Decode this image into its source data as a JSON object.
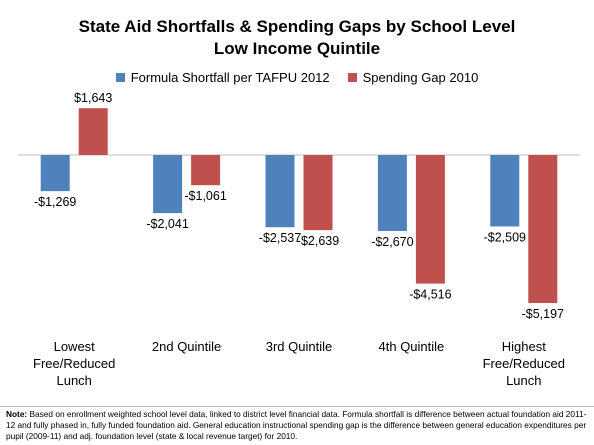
{
  "chart_data": {
    "type": "bar",
    "title": "State Aid Shortfalls & Spending Gaps by School Level Low Income Quintile",
    "xlabel": "",
    "ylabel": "",
    "categories": [
      "Lowest Free/Reduced Lunch",
      "2nd Quintile",
      "3rd Quintile",
      "4th Quintile",
      "Highest Free/Reduced Lunch"
    ],
    "category_lines": [
      [
        "Lowest",
        "Free/Reduced",
        "Lunch"
      ],
      [
        "2nd Quintile"
      ],
      [
        "3rd Quintile"
      ],
      [
        "4th Quintile"
      ],
      [
        "Highest",
        "Free/Reduced",
        "Lunch"
      ]
    ],
    "series": [
      {
        "name": "Formula Shortfall per TAFPU 2012",
        "color": "#4f81bd",
        "values": [
          -1269,
          -2041,
          -2537,
          -2670,
          -2509
        ],
        "labels": [
          "-$1,269",
          "-$2,041",
          "-$2,537",
          "-$2,670",
          "-$2,509"
        ]
      },
      {
        "name": "Spending Gap 2010",
        "color": "#c0504d",
        "values": [
          1643,
          -1061,
          -2639,
          -4516,
          -5197
        ],
        "labels": [
          "$1,643",
          "-$1,061",
          "-$2,639",
          "-$4,516",
          "-$5,197"
        ]
      }
    ],
    "ylim": [
      -5500,
      1900
    ],
    "grid": false,
    "legend_position": "top"
  },
  "footnote": {
    "label": "Note:",
    "text": " Based on enrollment weighted school level data, linked to district level financial data.  Formula shortfall is difference between actual foundation aid 2011-12 and fully phased in, fully funded foundation aid. General education instructional spending gap is the difference between general education expenditures per pupil (2009-11) and adj. foundation level (state & local revenue target) for 2010."
  }
}
